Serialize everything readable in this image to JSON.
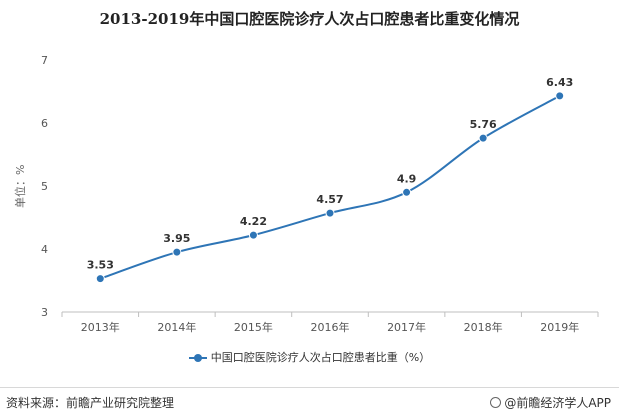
{
  "title": "2013-2019年中国口腔医院诊疗人次占口腔患者比重变化情况",
  "colors": {
    "series": "#2e75b6",
    "axis": "#bfbfbf",
    "text": "#333333"
  },
  "chart_data": {
    "type": "line",
    "title": "2013-2019年中国口腔医院诊疗人次占口腔患者比重变化情况",
    "xlabel": "",
    "ylabel": "单位：%",
    "categories": [
      "2013年",
      "2014年",
      "2015年",
      "2016年",
      "2017年",
      "2018年",
      "2019年"
    ],
    "series": [
      {
        "name": "中国口腔医院诊疗人次占口腔患者比重（%）",
        "values": [
          3.53,
          3.95,
          4.22,
          4.57,
          4.9,
          5.76,
          6.43
        ]
      }
    ],
    "ylim": [
      3,
      7
    ],
    "yticks": [
      3,
      4,
      5,
      6,
      7
    ],
    "grid": false,
    "legend": "bottom-center",
    "data_labels": true
  },
  "footer": {
    "source": "资料来源：前瞻产业研究院整理",
    "brand": "@前瞻经济学人APP"
  }
}
